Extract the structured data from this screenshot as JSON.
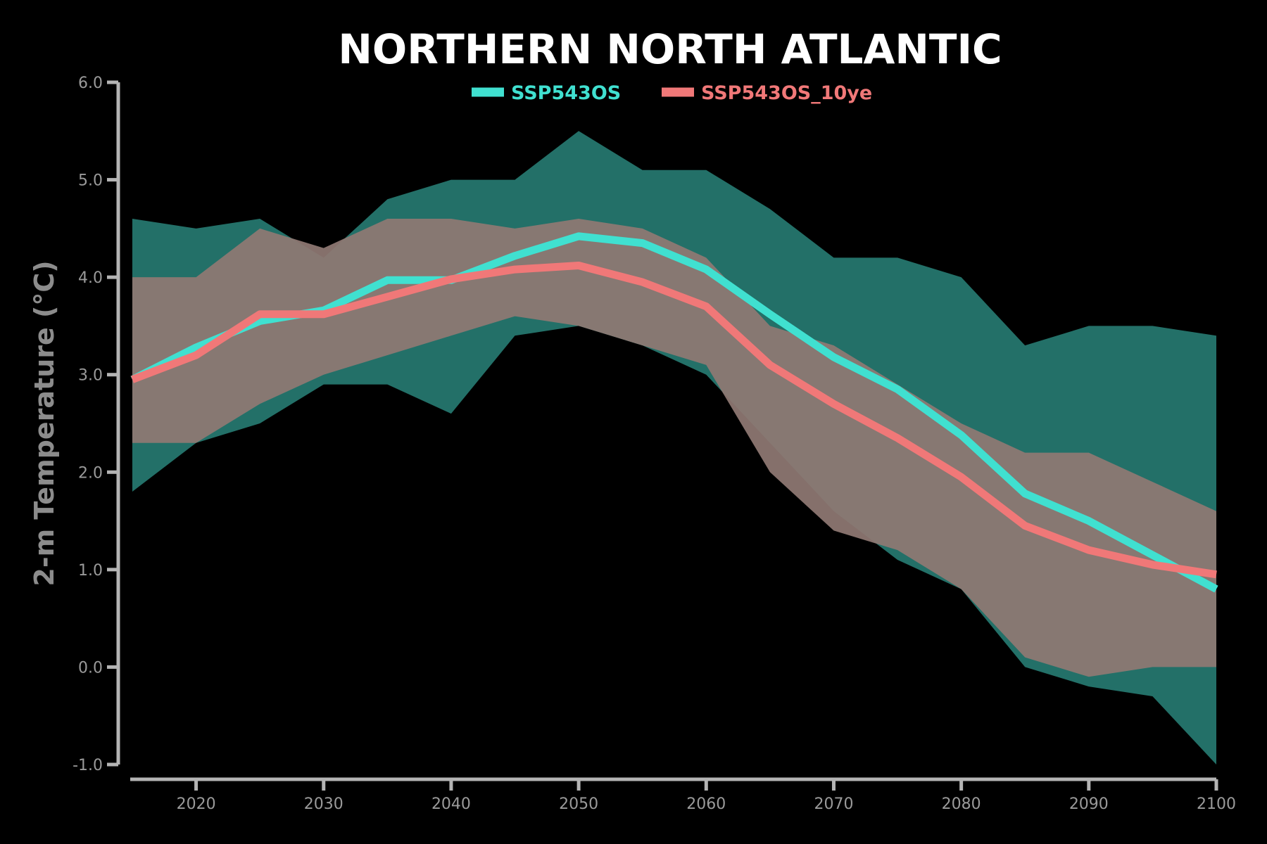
{
  "chart_data": {
    "type": "area",
    "title": "NORTHERN NORTH ATLANTIC",
    "xlabel": "",
    "ylabel": "2-m Temperature (°C)",
    "xlim": [
      2015,
      2100
    ],
    "ylim": [
      -1.0,
      6.0
    ],
    "xticks": [
      "2020",
      "2030",
      "2040",
      "2050",
      "2060",
      "2070",
      "2080",
      "2090",
      "2100"
    ],
    "yticks": [
      "-1.0",
      "0.0",
      "1.0",
      "2.0",
      "3.0",
      "4.0",
      "5.0",
      "6.0"
    ],
    "grid": false,
    "legend_position": "top-center",
    "background": "#000000",
    "axis_color": "#b4b4b4",
    "tick_label_color": "#9a9a9a",
    "x": [
      2015,
      2020,
      2025,
      2030,
      2035,
      2040,
      2045,
      2050,
      2055,
      2060,
      2065,
      2070,
      2075,
      2080,
      2085,
      2090,
      2095,
      2100
    ],
    "series": [
      {
        "name": "SSP543OS",
        "color": "#40e0d0",
        "band_color": "#237068",
        "values": [
          2.95,
          3.28,
          3.55,
          3.66,
          3.97,
          3.97,
          4.22,
          4.42,
          4.35,
          4.08,
          3.62,
          3.18,
          2.85,
          2.38,
          1.78,
          1.5,
          1.15,
          0.8
        ],
        "upper": [
          4.6,
          4.5,
          4.6,
          4.2,
          4.8,
          5.0,
          5.0,
          5.5,
          5.1,
          5.1,
          4.7,
          4.2,
          4.2,
          4.0,
          3.3,
          3.5,
          3.5,
          3.4
        ],
        "lower": [
          1.8,
          2.3,
          2.5,
          2.9,
          2.9,
          2.6,
          3.4,
          3.5,
          3.3,
          3.0,
          2.3,
          1.6,
          1.1,
          0.8,
          0.0,
          -0.2,
          -0.3,
          -1.0
        ]
      },
      {
        "name": "SSP543OS_10ye",
        "color": "#f07878",
        "band_color": "#8f7873",
        "values": [
          2.95,
          3.2,
          3.62,
          3.62,
          3.8,
          3.98,
          4.08,
          4.12,
          3.95,
          3.7,
          3.1,
          2.7,
          2.35,
          1.95,
          1.45,
          1.2,
          1.05,
          0.95
        ],
        "upper": [
          4.0,
          4.0,
          4.5,
          4.3,
          4.6,
          4.6,
          4.5,
          4.6,
          4.5,
          4.2,
          3.5,
          3.3,
          2.9,
          2.5,
          2.2,
          2.2,
          1.9,
          1.6
        ],
        "lower": [
          2.3,
          2.3,
          2.7,
          3.0,
          3.2,
          3.4,
          3.6,
          3.5,
          3.3,
          3.1,
          2.0,
          1.4,
          1.2,
          0.8,
          0.1,
          -0.1,
          0.0,
          0.0
        ]
      }
    ]
  }
}
